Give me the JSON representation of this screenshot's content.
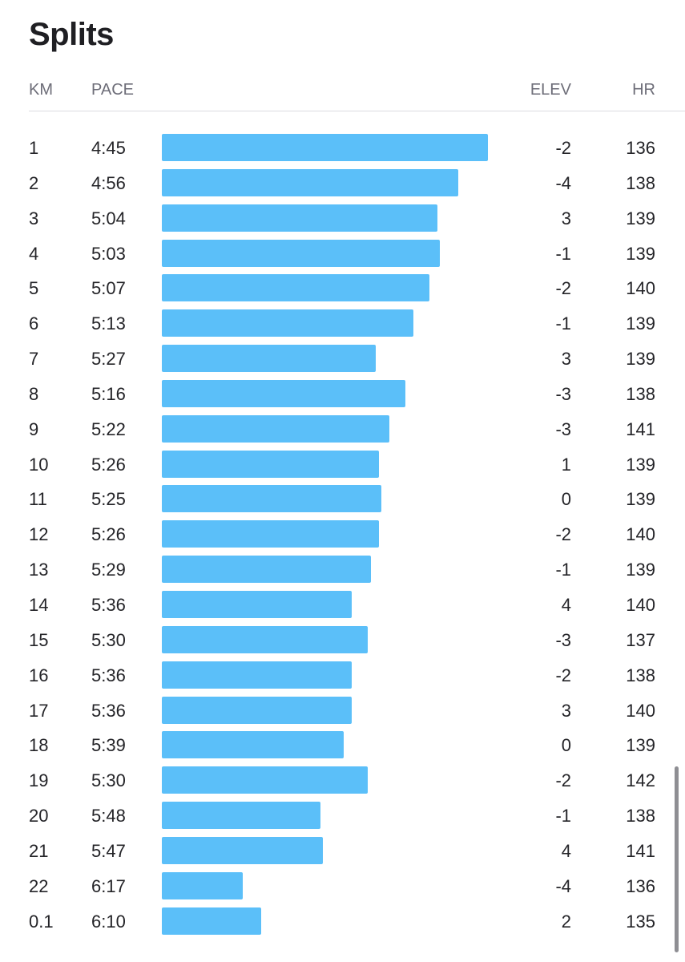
{
  "title": "Splits",
  "columns": {
    "km": "KM",
    "pace": "PACE",
    "elev": "ELEV",
    "hr": "HR"
  },
  "bar_color": "#5bbff9",
  "splits": [
    {
      "km": "1",
      "pace": "4:45",
      "elev": "-2",
      "hr": "136"
    },
    {
      "km": "2",
      "pace": "4:56",
      "elev": "-4",
      "hr": "138"
    },
    {
      "km": "3",
      "pace": "5:04",
      "elev": "3",
      "hr": "139"
    },
    {
      "km": "4",
      "pace": "5:03",
      "elev": "-1",
      "hr": "139"
    },
    {
      "km": "5",
      "pace": "5:07",
      "elev": "-2",
      "hr": "140"
    },
    {
      "km": "6",
      "pace": "5:13",
      "elev": "-1",
      "hr": "139"
    },
    {
      "km": "7",
      "pace": "5:27",
      "elev": "3",
      "hr": "139"
    },
    {
      "km": "8",
      "pace": "5:16",
      "elev": "-3",
      "hr": "138"
    },
    {
      "km": "9",
      "pace": "5:22",
      "elev": "-3",
      "hr": "141"
    },
    {
      "km": "10",
      "pace": "5:26",
      "elev": "1",
      "hr": "139"
    },
    {
      "km": "11",
      "pace": "5:25",
      "elev": "0",
      "hr": "139"
    },
    {
      "km": "12",
      "pace": "5:26",
      "elev": "-2",
      "hr": "140"
    },
    {
      "km": "13",
      "pace": "5:29",
      "elev": "-1",
      "hr": "139"
    },
    {
      "km": "14",
      "pace": "5:36",
      "elev": "4",
      "hr": "140"
    },
    {
      "km": "15",
      "pace": "5:30",
      "elev": "-3",
      "hr": "137"
    },
    {
      "km": "16",
      "pace": "5:36",
      "elev": "-2",
      "hr": "138"
    },
    {
      "km": "17",
      "pace": "5:36",
      "elev": "3",
      "hr": "140"
    },
    {
      "km": "18",
      "pace": "5:39",
      "elev": "0",
      "hr": "139"
    },
    {
      "km": "19",
      "pace": "5:30",
      "elev": "-2",
      "hr": "142"
    },
    {
      "km": "20",
      "pace": "5:48",
      "elev": "-1",
      "hr": "138"
    },
    {
      "km": "21",
      "pace": "5:47",
      "elev": "4",
      "hr": "141"
    },
    {
      "km": "22",
      "pace": "6:17",
      "elev": "-4",
      "hr": "136"
    },
    {
      "km": "0.1",
      "pace": "6:10",
      "elev": "2",
      "hr": "135"
    }
  ]
}
